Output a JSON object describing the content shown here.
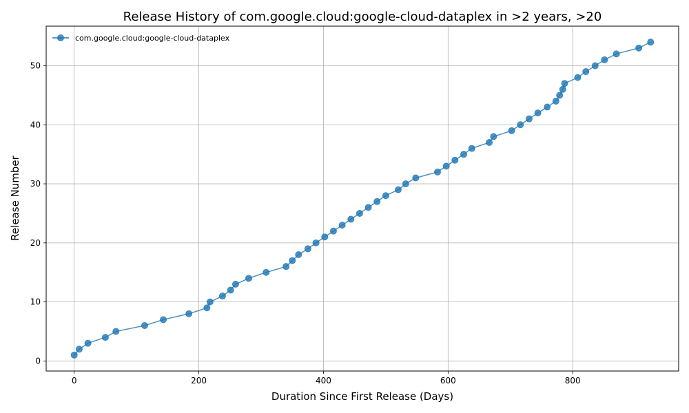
{
  "chart_data": {
    "type": "line",
    "title": "Release History of com.google.cloud:google-cloud-dataplex in >2 years, >20",
    "xlabel": "Duration Since First Release (Days)",
    "ylabel": "Release Number",
    "xlim": [
      -45,
      970
    ],
    "ylim": [
      -1.7,
      56.7
    ],
    "xticks": [
      0,
      200,
      400,
      600,
      800
    ],
    "yticks": [
      0,
      10,
      20,
      30,
      40,
      50
    ],
    "grid": true,
    "legend_position": "upper-left",
    "colors": {
      "series": "#1f77b4"
    },
    "series": [
      {
        "name": "com.google.cloud:google-cloud-dataplex",
        "x": [
          0,
          8,
          22,
          50,
          67,
          113,
          143,
          184,
          213,
          218,
          238,
          251,
          259,
          280,
          308,
          340,
          350,
          360,
          375,
          388,
          402,
          416,
          430,
          444,
          458,
          472,
          486,
          500,
          520,
          532,
          548,
          583,
          597,
          611,
          625,
          638,
          666,
          673,
          702,
          716,
          730,
          744,
          759,
          773,
          779,
          784,
          787,
          808,
          821,
          836,
          851,
          870,
          906,
          925
        ],
        "y": [
          1,
          2,
          3,
          4,
          5,
          6,
          7,
          8,
          9,
          10,
          11,
          12,
          13,
          14,
          15,
          16,
          17,
          18,
          19,
          20,
          21,
          22,
          23,
          24,
          25,
          26,
          27,
          28,
          29,
          30,
          31,
          32,
          33,
          34,
          35,
          36,
          37,
          38,
          39,
          40,
          41,
          42,
          43,
          44,
          45,
          46,
          47,
          48,
          49,
          50,
          51,
          52,
          53,
          54
        ]
      }
    ]
  }
}
